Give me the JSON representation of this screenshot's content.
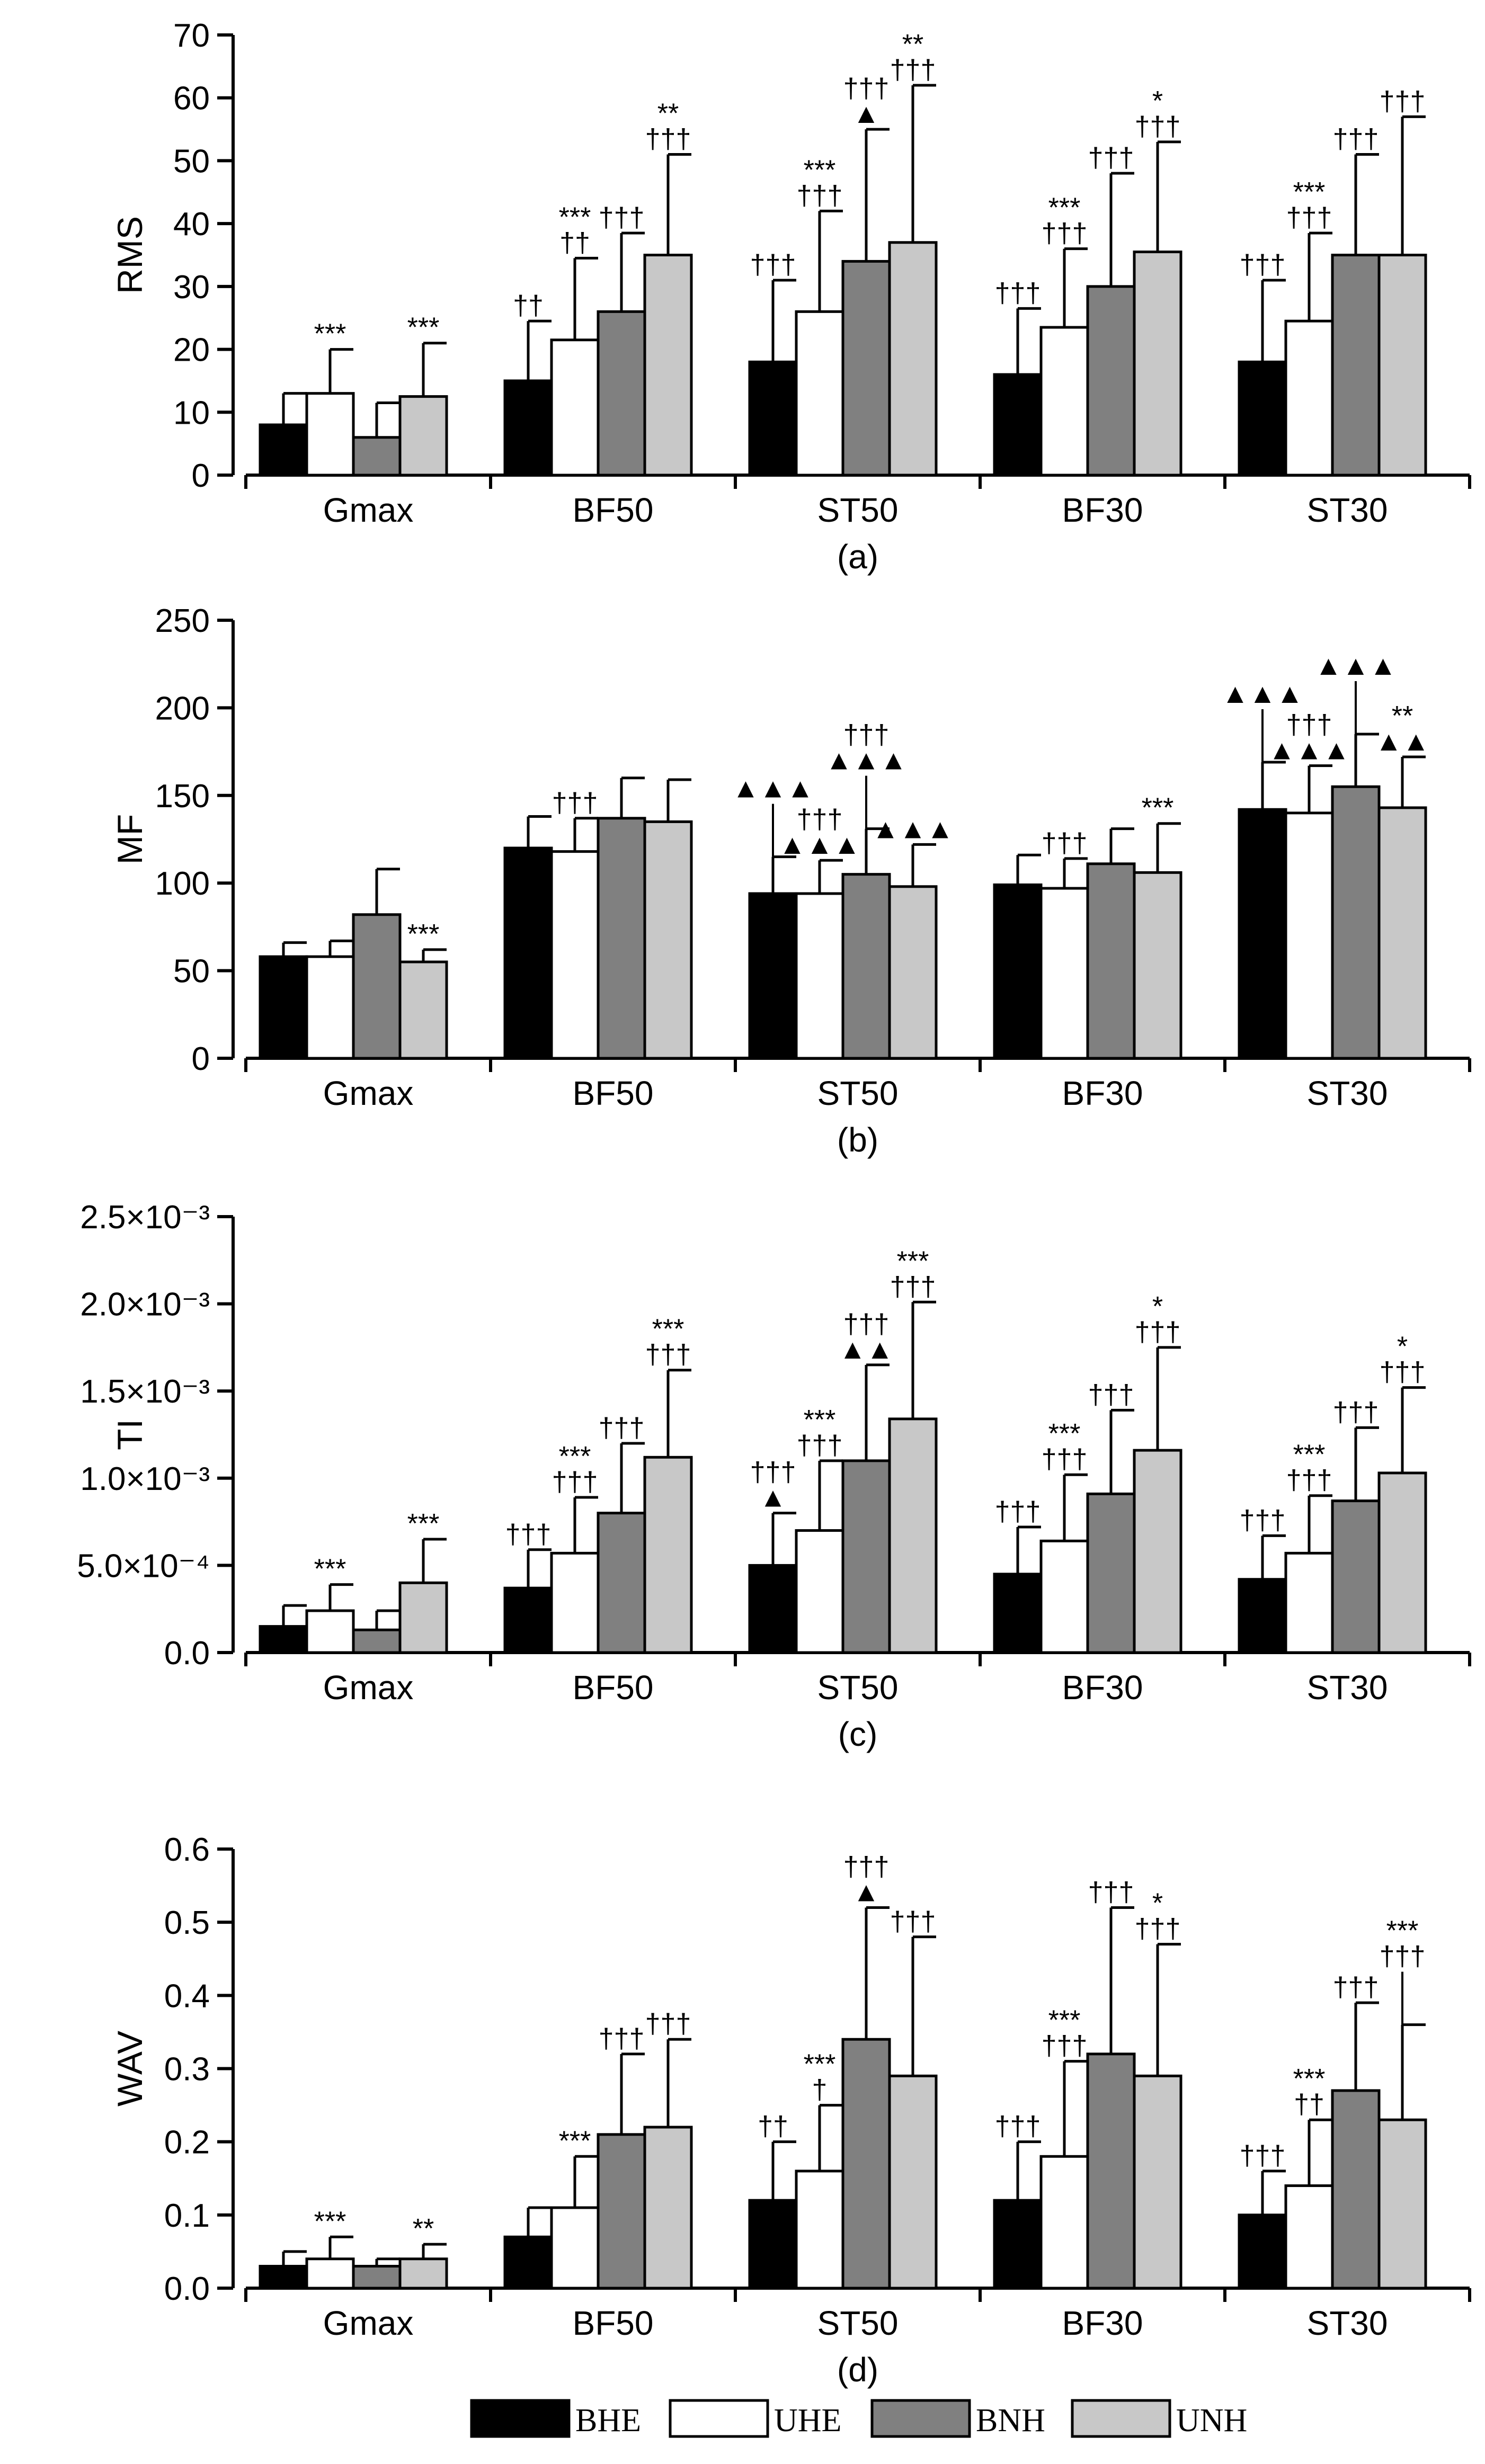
{
  "legend": [
    {
      "key": "BHE",
      "label": "BHE",
      "color": "#000000"
    },
    {
      "key": "UHE",
      "label": "UHE",
      "color": "#ffffff"
    },
    {
      "key": "BNH",
      "label": "BNH",
      "color": "#808080"
    },
    {
      "key": "UNH",
      "label": "UNH",
      "color": "#c8c8c8"
    }
  ],
  "chart_data": [
    {
      "type": "bar",
      "panel_label": "(a)",
      "ylabel": "RMS",
      "ylim": [
        0,
        70
      ],
      "yticks": [
        0,
        10,
        20,
        30,
        40,
        50,
        60,
        70
      ],
      "ytick_labels": [
        "0",
        "10",
        "20",
        "30",
        "40",
        "50",
        "60",
        "70"
      ],
      "categories": [
        "Gmax",
        "BF50",
        "ST50",
        "BF30",
        "ST30"
      ],
      "series": [
        {
          "name": "BHE",
          "values": [
            8,
            15,
            18,
            16,
            18
          ],
          "errors": [
            13,
            24.5,
            31,
            26.5,
            31
          ]
        },
        {
          "name": "UHE",
          "values": [
            13,
            21.5,
            26,
            23.5,
            24.5
          ],
          "errors": [
            20,
            34.5,
            42,
            36,
            38.5
          ]
        },
        {
          "name": "BNH",
          "values": [
            6,
            26,
            34,
            30,
            35
          ],
          "errors": [
            11.5,
            38.5,
            55,
            48,
            51
          ]
        },
        {
          "name": "UNH",
          "values": [
            12.5,
            35,
            37,
            35.5,
            35
          ],
          "errors": [
            21,
            51,
            62,
            53,
            57
          ]
        }
      ],
      "annotations": [
        {
          "cat": 0,
          "series": 1,
          "lines": [
            "***"
          ]
        },
        {
          "cat": 0,
          "series": 3,
          "lines": [
            "***"
          ]
        },
        {
          "cat": 1,
          "series": 0,
          "lines": [
            "††"
          ]
        },
        {
          "cat": 1,
          "series": 1,
          "lines": [
            "***",
            "††"
          ]
        },
        {
          "cat": 1,
          "series": 2,
          "lines": [
            "†††"
          ]
        },
        {
          "cat": 1,
          "series": 3,
          "lines": [
            "**",
            "†††"
          ]
        },
        {
          "cat": 2,
          "series": 0,
          "lines": [
            "†††"
          ]
        },
        {
          "cat": 2,
          "series": 1,
          "lines": [
            "***",
            "†††"
          ]
        },
        {
          "cat": 2,
          "series": 2,
          "lines": [
            "†††",
            "▲"
          ]
        },
        {
          "cat": 2,
          "series": 3,
          "lines": [
            "**",
            "†††"
          ]
        },
        {
          "cat": 3,
          "series": 0,
          "lines": [
            "†††"
          ]
        },
        {
          "cat": 3,
          "series": 1,
          "lines": [
            "***",
            "†††"
          ]
        },
        {
          "cat": 3,
          "series": 2,
          "lines": [
            "†††"
          ]
        },
        {
          "cat": 3,
          "series": 3,
          "lines": [
            "*",
            "†††"
          ]
        },
        {
          "cat": 4,
          "series": 0,
          "lines": [
            "†††"
          ]
        },
        {
          "cat": 4,
          "series": 1,
          "lines": [
            "***",
            "†††"
          ]
        },
        {
          "cat": 4,
          "series": 2,
          "lines": [
            "†††"
          ]
        },
        {
          "cat": 4,
          "series": 3,
          "lines": [
            "†††"
          ]
        }
      ]
    },
    {
      "type": "bar",
      "panel_label": "(b)",
      "ylabel": "MF",
      "ylim": [
        0,
        250
      ],
      "yticks": [
        0,
        50,
        100,
        150,
        200,
        250
      ],
      "ytick_labels": [
        "0",
        "50",
        "100",
        "150",
        "200",
        "250"
      ],
      "categories": [
        "Gmax",
        "BF50",
        "ST50",
        "BF30",
        "ST30"
      ],
      "series": [
        {
          "name": "BHE",
          "values": [
            58,
            120,
            94,
            99,
            142
          ],
          "errors": [
            66,
            138,
            115,
            116,
            169
          ]
        },
        {
          "name": "UHE",
          "values": [
            58,
            118,
            94,
            97,
            140
          ],
          "errors": [
            67,
            137,
            113,
            114,
            167
          ]
        },
        {
          "name": "BNH",
          "values": [
            82,
            137,
            105,
            111,
            155
          ],
          "errors": [
            108,
            160,
            131,
            131,
            185
          ]
        },
        {
          "name": "UNH",
          "values": [
            55,
            135,
            98,
            106,
            143
          ],
          "errors": [
            62,
            159,
            122,
            134,
            172
          ]
        }
      ],
      "annotations": [
        {
          "cat": 0,
          "series": 3,
          "lines": [
            "***"
          ]
        },
        {
          "cat": 1,
          "series": 1,
          "lines": [
            "†††"
          ]
        },
        {
          "cat": 2,
          "series": 0,
          "lines": [
            "▲▲▲"
          ],
          "leader": true
        },
        {
          "cat": 2,
          "series": 1,
          "lines": [
            "†††",
            "▲▲▲"
          ]
        },
        {
          "cat": 2,
          "series": 2,
          "lines": [
            "†††",
            "▲▲▲"
          ],
          "leader": true
        },
        {
          "cat": 2,
          "series": 3,
          "lines": [
            "▲▲▲"
          ]
        },
        {
          "cat": 3,
          "series": 1,
          "lines": [
            "†††"
          ]
        },
        {
          "cat": 3,
          "series": 3,
          "lines": [
            "***"
          ]
        },
        {
          "cat": 4,
          "series": 0,
          "lines": [
            "▲▲▲"
          ],
          "leader": true
        },
        {
          "cat": 4,
          "series": 1,
          "lines": [
            "†††",
            "▲▲▲"
          ]
        },
        {
          "cat": 4,
          "series": 2,
          "lines": [
            "▲▲▲"
          ],
          "leader": true
        },
        {
          "cat": 4,
          "series": 3,
          "lines": [
            "**",
            "▲▲"
          ]
        }
      ]
    },
    {
      "type": "bar",
      "panel_label": "(c)",
      "ylabel": "TI",
      "ylim": [
        0,
        0.0025
      ],
      "yticks": [
        0,
        0.0005,
        0.001,
        0.0015,
        0.002,
        0.0025
      ],
      "ytick_labels": [
        "0.0",
        "5.0×10⁻⁴",
        "1.0×10⁻³",
        "1.5×10⁻³",
        "2.0×10⁻³",
        "2.5×10⁻³"
      ],
      "categories": [
        "Gmax",
        "BF50",
        "ST50",
        "BF30",
        "ST30"
      ],
      "series": [
        {
          "name": "BHE",
          "values": [
            0.00015,
            0.00037,
            0.0005,
            0.00045,
            0.00042
          ],
          "errors": [
            0.00027,
            0.00059,
            0.0008,
            0.00072,
            0.00067
          ]
        },
        {
          "name": "UHE",
          "values": [
            0.00024,
            0.00057,
            0.0007,
            0.00064,
            0.00057
          ],
          "errors": [
            0.00039,
            0.00089,
            0.0011,
            0.00102,
            0.0009
          ]
        },
        {
          "name": "BNH",
          "values": [
            0.00013,
            0.0008,
            0.0011,
            0.00091,
            0.00087
          ],
          "errors": [
            0.00024,
            0.0012,
            0.00165,
            0.00139,
            0.00129
          ]
        },
        {
          "name": "UNH",
          "values": [
            0.0004,
            0.00112,
            0.00134,
            0.00116,
            0.00103
          ],
          "errors": [
            0.00065,
            0.00162,
            0.00201,
            0.00175,
            0.00152
          ]
        }
      ],
      "annotations": [
        {
          "cat": 0,
          "series": 1,
          "lines": [
            "***"
          ]
        },
        {
          "cat": 0,
          "series": 3,
          "lines": [
            "***"
          ]
        },
        {
          "cat": 1,
          "series": 0,
          "lines": [
            "†††"
          ]
        },
        {
          "cat": 1,
          "series": 1,
          "lines": [
            "***",
            "†††"
          ]
        },
        {
          "cat": 1,
          "series": 2,
          "lines": [
            "†††"
          ]
        },
        {
          "cat": 1,
          "series": 3,
          "lines": [
            "***",
            "†††"
          ]
        },
        {
          "cat": 2,
          "series": 0,
          "lines": [
            "†††",
            "▲"
          ]
        },
        {
          "cat": 2,
          "series": 1,
          "lines": [
            "***",
            "†††"
          ]
        },
        {
          "cat": 2,
          "series": 2,
          "lines": [
            "†††",
            "▲▲"
          ]
        },
        {
          "cat": 2,
          "series": 3,
          "lines": [
            "***",
            "†††"
          ]
        },
        {
          "cat": 3,
          "series": 0,
          "lines": [
            "†††"
          ]
        },
        {
          "cat": 3,
          "series": 1,
          "lines": [
            "***",
            "†††"
          ]
        },
        {
          "cat": 3,
          "series": 2,
          "lines": [
            "†††"
          ]
        },
        {
          "cat": 3,
          "series": 3,
          "lines": [
            "*",
            "†††"
          ]
        },
        {
          "cat": 4,
          "series": 0,
          "lines": [
            "†††"
          ]
        },
        {
          "cat": 4,
          "series": 1,
          "lines": [
            "***",
            "†††"
          ]
        },
        {
          "cat": 4,
          "series": 2,
          "lines": [
            "†††"
          ]
        },
        {
          "cat": 4,
          "series": 3,
          "lines": [
            "*",
            "†††"
          ]
        }
      ]
    },
    {
      "type": "bar",
      "panel_label": "(d)",
      "ylabel": "WAV",
      "ylim": [
        0,
        0.6
      ],
      "yticks": [
        0,
        0.1,
        0.2,
        0.3,
        0.4,
        0.5,
        0.6
      ],
      "ytick_labels": [
        "0.0",
        "0.1",
        "0.2",
        "0.3",
        "0.4",
        "0.5",
        "0.6"
      ],
      "categories": [
        "Gmax",
        "BF50",
        "ST50",
        "BF30",
        "ST30"
      ],
      "series": [
        {
          "name": "BHE",
          "values": [
            0.03,
            0.07,
            0.12,
            0.12,
            0.1
          ],
          "errors": [
            0.05,
            0.11,
            0.2,
            0.2,
            0.16
          ]
        },
        {
          "name": "UHE",
          "values": [
            0.04,
            0.11,
            0.16,
            0.18,
            0.14
          ],
          "errors": [
            0.07,
            0.18,
            0.25,
            0.31,
            0.23
          ]
        },
        {
          "name": "BNH",
          "values": [
            0.03,
            0.21,
            0.34,
            0.32,
            0.27
          ],
          "errors": [
            0.04,
            0.32,
            0.52,
            0.52,
            0.39
          ]
        },
        {
          "name": "UNH",
          "values": [
            0.04,
            0.22,
            0.29,
            0.29,
            0.23
          ],
          "errors": [
            0.06,
            0.34,
            0.48,
            0.47,
            0.36
          ]
        }
      ],
      "annotations": [
        {
          "cat": 0,
          "series": 1,
          "lines": [
            "***"
          ]
        },
        {
          "cat": 0,
          "series": 3,
          "lines": [
            "**"
          ]
        },
        {
          "cat": 1,
          "series": 1,
          "lines": [
            "***"
          ]
        },
        {
          "cat": 1,
          "series": 2,
          "lines": [
            "†††"
          ]
        },
        {
          "cat": 1,
          "series": 3,
          "lines": [
            "†††"
          ]
        },
        {
          "cat": 2,
          "series": 0,
          "lines": [
            "††"
          ]
        },
        {
          "cat": 2,
          "series": 1,
          "lines": [
            "***",
            "†"
          ]
        },
        {
          "cat": 2,
          "series": 2,
          "lines": [
            "†††",
            "▲"
          ]
        },
        {
          "cat": 2,
          "series": 3,
          "lines": [
            "†††"
          ]
        },
        {
          "cat": 3,
          "series": 0,
          "lines": [
            "†††"
          ]
        },
        {
          "cat": 3,
          "series": 1,
          "lines": [
            "***",
            "†††"
          ]
        },
        {
          "cat": 3,
          "series": 2,
          "lines": [
            "†††"
          ]
        },
        {
          "cat": 3,
          "series": 3,
          "lines": [
            "*",
            "†††"
          ]
        },
        {
          "cat": 4,
          "series": 0,
          "lines": [
            "†††"
          ]
        },
        {
          "cat": 4,
          "series": 1,
          "lines": [
            "***",
            "††"
          ]
        },
        {
          "cat": 4,
          "series": 2,
          "lines": [
            "†††"
          ]
        },
        {
          "cat": 4,
          "series": 3,
          "lines": [
            "***",
            "†††"
          ],
          "leader": true
        }
      ]
    }
  ]
}
